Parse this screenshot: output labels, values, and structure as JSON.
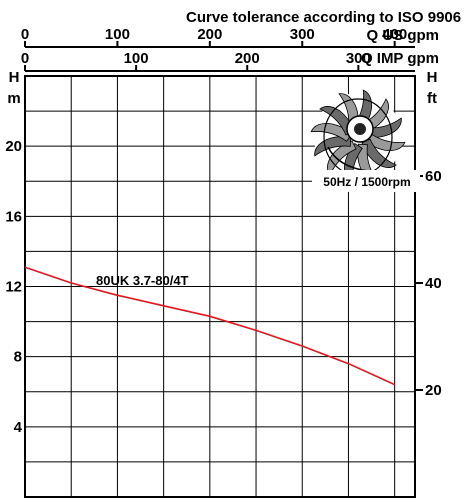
{
  "chart_data": {
    "type": "line",
    "title": "Curve tolerance according to ISO 9906",
    "top_axis_us": {
      "label": "Q US gpm",
      "ticks": [
        0,
        100,
        200,
        300,
        400
      ],
      "range": [
        0,
        422
      ]
    },
    "top_axis_imp": {
      "label": "Q IMP gpm",
      "ticks": [
        0,
        100,
        200,
        300
      ],
      "range": [
        0,
        351
      ]
    },
    "left_axis": {
      "label_line1": "H",
      "label_line2": "m",
      "ticks": [
        4,
        8,
        12,
        16,
        20
      ],
      "range": [
        0,
        24
      ]
    },
    "right_axis": {
      "label_line1": "H",
      "label_line2": "ft",
      "ticks": [
        20,
        40,
        60
      ],
      "range": [
        0,
        78.7
      ]
    },
    "grid": true,
    "series": [
      {
        "name": "80UK 3.7-80/4T",
        "color": "#e8141c",
        "x_us_gpm": [
          0,
          50,
          100,
          150,
          200,
          250,
          300,
          350,
          400
        ],
        "h_m": [
          13.1,
          12.2,
          11.5,
          10.9,
          10.3,
          9.5,
          8.6,
          7.6,
          6.4
        ]
      }
    ],
    "annotation": "50Hz / 1500rpm",
    "impeller_icon": "impeller-icon"
  }
}
